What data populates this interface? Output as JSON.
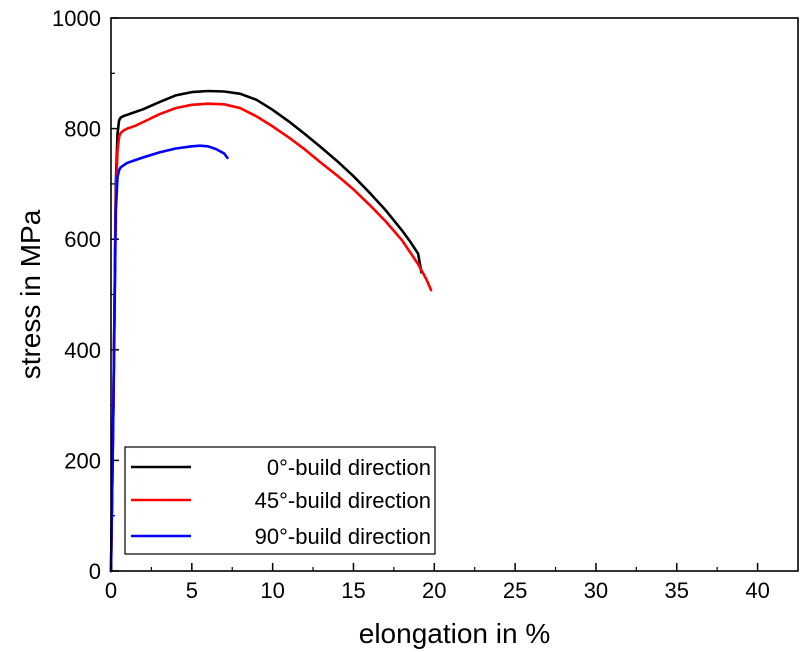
{
  "chart_data": {
    "type": "line",
    "title": "",
    "xlabel": "elongation in %",
    "ylabel": "stress in MPa",
    "xlim": [
      0,
      42.5
    ],
    "ylim": [
      0,
      1000
    ],
    "x_ticks": [
      0,
      5,
      10,
      15,
      20,
      25,
      30,
      35,
      40
    ],
    "y_ticks": [
      0,
      200,
      400,
      600,
      800,
      1000
    ],
    "grid": false,
    "legend_position": "bottom-left",
    "series": [
      {
        "name": "0°-build direction",
        "color": "#000000",
        "x": [
          0,
          0.15,
          0.3,
          0.4,
          0.5,
          0.6,
          0.8,
          1.0,
          1.5,
          2,
          3,
          4,
          5,
          6,
          7,
          8,
          9,
          10,
          11,
          12,
          13,
          14,
          15,
          16,
          17,
          18,
          18.5,
          19,
          19.2
        ],
        "y": [
          0,
          300,
          700,
          790,
          815,
          820,
          823,
          825,
          830,
          835,
          848,
          860,
          866,
          868,
          867,
          863,
          852,
          834,
          813,
          790,
          766,
          741,
          714,
          684,
          652,
          616,
          596,
          574,
          540
        ]
      },
      {
        "name": "45°-build direction",
        "color": "#ff0000",
        "x": [
          0,
          0.15,
          0.3,
          0.4,
          0.5,
          0.6,
          0.8,
          1.0,
          1.5,
          2,
          3,
          4,
          5,
          6,
          7,
          8,
          9,
          10,
          11,
          12,
          13,
          14,
          15,
          16,
          17,
          18,
          19,
          19.5,
          19.8
        ],
        "y": [
          0,
          300,
          680,
          760,
          785,
          792,
          797,
          800,
          805,
          812,
          826,
          837,
          843,
          845,
          844,
          837,
          822,
          804,
          784,
          762,
          738,
          715,
          690,
          662,
          632,
          598,
          555,
          528,
          508
        ]
      },
      {
        "name": "90°-build direction",
        "color": "#0000ff",
        "x": [
          0,
          0.15,
          0.3,
          0.4,
          0.5,
          0.6,
          0.8,
          1.0,
          1.5,
          2,
          3,
          4,
          5,
          5.5,
          6,
          6.5,
          7,
          7.2
        ],
        "y": [
          0,
          300,
          650,
          712,
          725,
          730,
          734,
          738,
          743,
          748,
          757,
          764,
          768,
          769,
          768,
          763,
          755,
          747
        ]
      }
    ]
  }
}
